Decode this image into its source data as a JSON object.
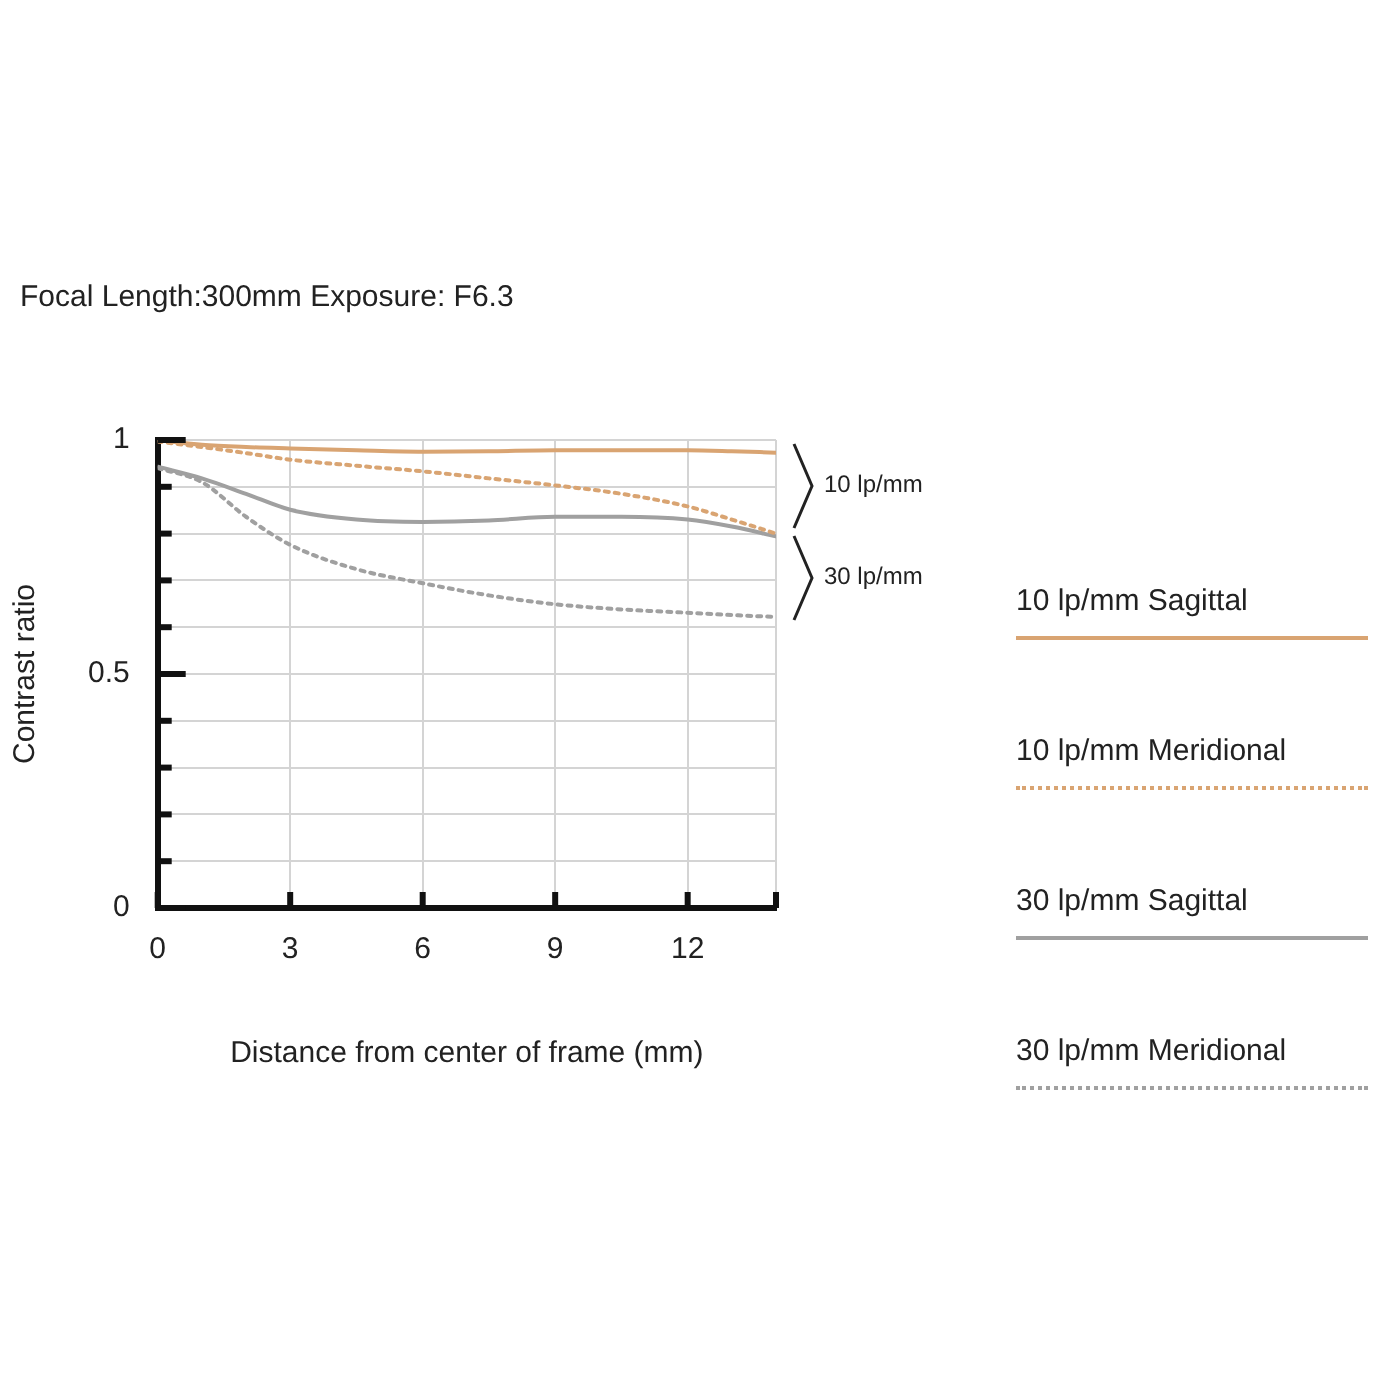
{
  "chart_data": {
    "type": "line",
    "title": "Focal Length:300mm  Exposure: F6.3",
    "xlabel": "Distance from center of frame (mm)",
    "ylabel": "Contrast ratio",
    "x": [
      0,
      1,
      2,
      3,
      4.5,
      6,
      7.5,
      9,
      10.5,
      12,
      13,
      14
    ],
    "xlim": [
      0,
      14
    ],
    "xticks": [
      0,
      3,
      6,
      9,
      12,
      {
        "value": 14,
        "label": null
      }
    ],
    "ylim": [
      0,
      1
    ],
    "yticks": [
      0,
      {
        "value": 0.1,
        "label": null
      },
      {
        "value": 0.2,
        "label": null
      },
      {
        "value": 0.3,
        "label": null
      },
      {
        "value": 0.4,
        "label": null
      },
      0.5,
      {
        "value": 0.6,
        "label": null
      },
      {
        "value": 0.7,
        "label": null
      },
      {
        "value": 0.8,
        "label": null
      },
      {
        "value": 0.9,
        "label": null
      },
      1
    ],
    "grid": true,
    "legend": "right",
    "marker": "none",
    "series": [
      {
        "name": "10 lp/mm Sagittal",
        "color": "#d9a472",
        "line_style": "solid",
        "values": [
          1.0,
          0.99,
          0.985,
          0.982,
          0.978,
          0.975,
          0.976,
          0.978,
          0.978,
          0.978,
          0.976,
          0.973
        ]
      },
      {
        "name": "10 lp/mm Meridional",
        "color": "#d9a472",
        "line_style": "dotted",
        "values": [
          0.997,
          0.985,
          0.972,
          0.958,
          0.945,
          0.933,
          0.918,
          0.903,
          0.885,
          0.858,
          0.83,
          0.8
        ]
      },
      {
        "name": "30 lp/mm Sagittal",
        "color": "#a0a0a0",
        "line_style": "solid",
        "values": [
          0.943,
          0.918,
          0.885,
          0.851,
          0.83,
          0.825,
          0.828,
          0.836,
          0.836,
          0.83,
          0.815,
          0.794
        ]
      },
      {
        "name": "30 lp/mm Meridional",
        "color": "#a0a0a0",
        "line_style": "dotted",
        "values": [
          0.94,
          0.91,
          0.836,
          0.776,
          0.724,
          0.694,
          0.668,
          0.649,
          0.638,
          0.631,
          0.626,
          0.622
        ]
      }
    ],
    "annotations": [
      "10 lp/mm",
      "30 lp/mm"
    ]
  }
}
